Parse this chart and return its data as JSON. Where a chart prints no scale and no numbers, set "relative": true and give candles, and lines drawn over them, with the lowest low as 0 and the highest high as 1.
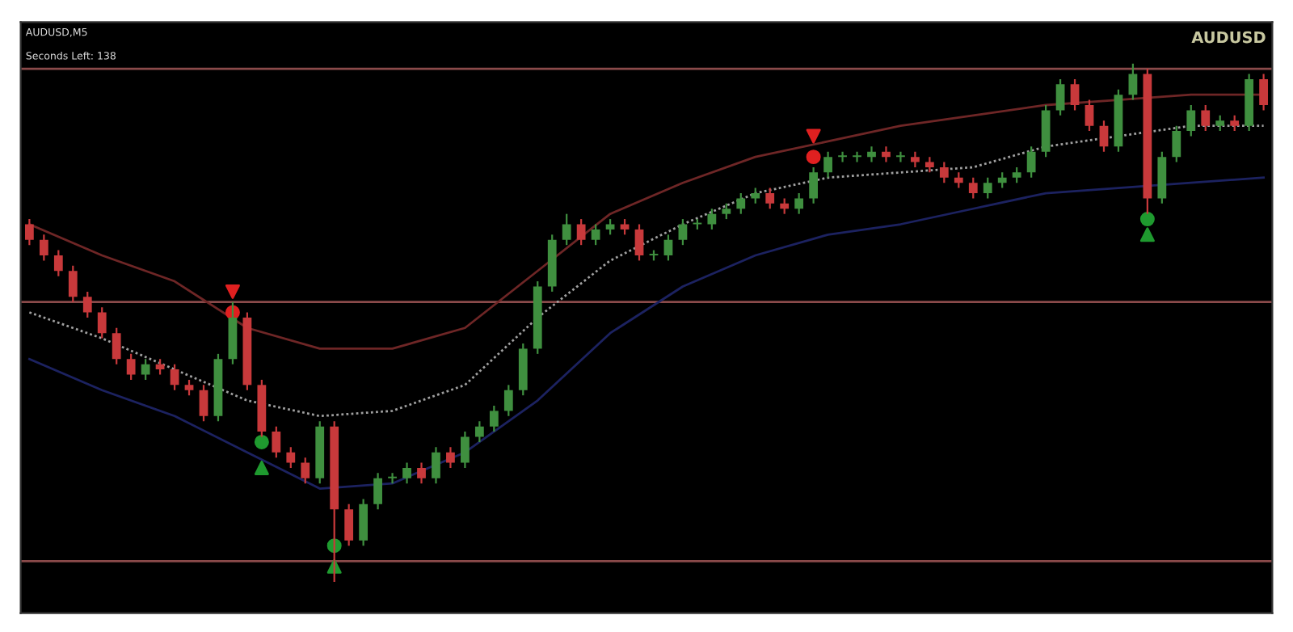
{
  "chart_data": {
    "type": "candlestick",
    "relative": true,
    "title": "AUDUSD",
    "annotations": [
      "AUDUSD,M5",
      "Seconds Left: 138"
    ],
    "categories": [
      null,
      null,
      null,
      null,
      null,
      null,
      null,
      null,
      null,
      null,
      null,
      null,
      null,
      null,
      null,
      null,
      null,
      null,
      null,
      null,
      null,
      null,
      null,
      null,
      null,
      null,
      null,
      null,
      null,
      null,
      null,
      null,
      null,
      null,
      null,
      null,
      null,
      null,
      null,
      null,
      null,
      null,
      null,
      null,
      null,
      null,
      null,
      null,
      null,
      null,
      null,
      null,
      null,
      null,
      null,
      null,
      null,
      null,
      null,
      null,
      null,
      null,
      null,
      null,
      null,
      null,
      null,
      null,
      null,
      null,
      null,
      null,
      null,
      null,
      null,
      null,
      null,
      null,
      null,
      null,
      null,
      null,
      null,
      null,
      null,
      null
    ],
    "ohlc": [
      [
        0.69,
        0.7,
        0.65,
        0.66
      ],
      [
        0.66,
        0.67,
        0.62,
        0.63
      ],
      [
        0.63,
        0.64,
        0.59,
        0.6
      ],
      [
        0.6,
        0.61,
        0.54,
        0.55
      ],
      [
        0.55,
        0.56,
        0.51,
        0.52
      ],
      [
        0.52,
        0.53,
        0.47,
        0.48
      ],
      [
        0.48,
        0.49,
        0.42,
        0.43
      ],
      [
        0.43,
        0.44,
        0.39,
        0.4
      ],
      [
        0.4,
        0.43,
        0.39,
        0.42
      ],
      [
        0.42,
        0.43,
        0.4,
        0.41
      ],
      [
        0.41,
        0.42,
        0.37,
        0.38
      ],
      [
        0.38,
        0.39,
        0.36,
        0.37
      ],
      [
        0.37,
        0.38,
        0.31,
        0.32
      ],
      [
        0.32,
        0.44,
        0.31,
        0.43
      ],
      [
        0.43,
        0.54,
        0.42,
        0.51
      ],
      [
        0.51,
        0.52,
        0.37,
        0.38
      ],
      [
        0.38,
        0.39,
        0.28,
        0.29
      ],
      [
        0.29,
        0.3,
        0.24,
        0.25
      ],
      [
        0.25,
        0.26,
        0.22,
        0.23
      ],
      [
        0.23,
        0.24,
        0.19,
        0.2
      ],
      [
        0.2,
        0.31,
        0.19,
        0.3
      ],
      [
        0.3,
        0.31,
        0.0,
        0.14
      ],
      [
        0.14,
        0.15,
        0.07,
        0.08
      ],
      [
        0.08,
        0.16,
        0.07,
        0.15
      ],
      [
        0.15,
        0.21,
        0.14,
        0.2
      ],
      [
        0.2,
        0.21,
        0.19,
        0.2
      ],
      [
        0.2,
        0.23,
        0.19,
        0.22
      ],
      [
        0.22,
        0.23,
        0.19,
        0.2
      ],
      [
        0.2,
        0.26,
        0.19,
        0.25
      ],
      [
        0.25,
        0.26,
        0.22,
        0.23
      ],
      [
        0.23,
        0.29,
        0.22,
        0.28
      ],
      [
        0.28,
        0.31,
        0.27,
        0.3
      ],
      [
        0.3,
        0.34,
        0.29,
        0.33
      ],
      [
        0.33,
        0.38,
        0.32,
        0.37
      ],
      [
        0.37,
        0.46,
        0.36,
        0.45
      ],
      [
        0.45,
        0.58,
        0.44,
        0.57
      ],
      [
        0.57,
        0.67,
        0.56,
        0.66
      ],
      [
        0.66,
        0.71,
        0.65,
        0.69
      ],
      [
        0.69,
        0.7,
        0.65,
        0.66
      ],
      [
        0.66,
        0.69,
        0.65,
        0.68
      ],
      [
        0.68,
        0.7,
        0.67,
        0.69
      ],
      [
        0.69,
        0.7,
        0.67,
        0.68
      ],
      [
        0.68,
        0.69,
        0.62,
        0.63
      ],
      [
        0.63,
        0.64,
        0.62,
        0.63
      ],
      [
        0.63,
        0.67,
        0.62,
        0.66
      ],
      [
        0.66,
        0.7,
        0.65,
        0.69
      ],
      [
        0.69,
        0.7,
        0.68,
        0.69
      ],
      [
        0.69,
        0.72,
        0.68,
        0.71
      ],
      [
        0.71,
        0.73,
        0.7,
        0.72
      ],
      [
        0.72,
        0.75,
        0.71,
        0.74
      ],
      [
        0.74,
        0.76,
        0.73,
        0.75
      ],
      [
        0.75,
        0.76,
        0.72,
        0.73
      ],
      [
        0.73,
        0.74,
        0.71,
        0.72
      ],
      [
        0.72,
        0.75,
        0.71,
        0.74
      ],
      [
        0.74,
        0.8,
        0.73,
        0.79
      ],
      [
        0.79,
        0.83,
        0.78,
        0.82
      ],
      [
        0.82,
        0.83,
        0.81,
        0.82
      ],
      [
        0.82,
        0.83,
        0.81,
        0.82
      ],
      [
        0.82,
        0.84,
        0.81,
        0.83
      ],
      [
        0.83,
        0.84,
        0.81,
        0.82
      ],
      [
        0.82,
        0.83,
        0.81,
        0.82
      ],
      [
        0.82,
        0.83,
        0.8,
        0.81
      ],
      [
        0.81,
        0.82,
        0.79,
        0.8
      ],
      [
        0.8,
        0.81,
        0.77,
        0.78
      ],
      [
        0.78,
        0.79,
        0.76,
        0.77
      ],
      [
        0.77,
        0.78,
        0.74,
        0.75
      ],
      [
        0.75,
        0.78,
        0.74,
        0.77
      ],
      [
        0.77,
        0.79,
        0.76,
        0.78
      ],
      [
        0.78,
        0.8,
        0.77,
        0.79
      ],
      [
        0.79,
        0.84,
        0.78,
        0.83
      ],
      [
        0.83,
        0.92,
        0.82,
        0.91
      ],
      [
        0.91,
        0.97,
        0.9,
        0.96
      ],
      [
        0.96,
        0.97,
        0.91,
        0.92
      ],
      [
        0.92,
        0.93,
        0.87,
        0.88
      ],
      [
        0.88,
        0.89,
        0.83,
        0.84
      ],
      [
        0.84,
        0.95,
        0.83,
        0.94
      ],
      [
        0.94,
        1.0,
        0.93,
        0.98
      ],
      [
        0.98,
        0.99,
        0.71,
        0.74
      ],
      [
        0.74,
        0.83,
        0.73,
        0.82
      ],
      [
        0.82,
        0.88,
        0.81,
        0.87
      ],
      [
        0.87,
        0.92,
        0.86,
        0.91
      ],
      [
        0.91,
        0.92,
        0.87,
        0.88
      ],
      [
        0.88,
        0.9,
        0.87,
        0.89
      ],
      [
        0.89,
        0.9,
        0.87,
        0.88
      ],
      [
        0.88,
        0.98,
        0.87,
        0.97
      ],
      [
        0.97,
        0.98,
        0.91,
        0.92
      ]
    ],
    "ref_lines": [
      {
        "axis": "y",
        "value": 0.54,
        "color": "#8a4a4a"
      },
      {
        "axis": "y",
        "value": 0.04,
        "color": "#8a4a4a"
      },
      {
        "axis": "y",
        "value": 0.99,
        "color": "#8a4a4a"
      }
    ],
    "series": [
      {
        "type": "line",
        "color": "#6e2626",
        "line_style": "solid",
        "values": [
          0.69,
          null,
          null,
          null,
          null,
          0.63,
          null,
          null,
          null,
          null,
          0.58,
          null,
          null,
          null,
          null,
          0.49,
          null,
          null,
          null,
          null,
          0.45,
          null,
          null,
          null,
          null,
          0.45,
          null,
          null,
          null,
          null,
          0.49,
          null,
          null,
          null,
          null,
          0.6,
          null,
          null,
          null,
          null,
          0.71,
          null,
          null,
          null,
          null,
          0.77,
          null,
          null,
          null,
          null,
          0.82,
          null,
          null,
          null,
          null,
          0.85,
          null,
          null,
          null,
          null,
          0.88,
          null,
          null,
          null,
          null,
          0.9,
          null,
          null,
          null,
          null,
          0.92,
          null,
          null,
          null,
          null,
          0.93,
          null,
          null,
          null,
          null,
          0.94,
          null,
          null,
          null,
          null,
          0.94
        ]
      },
      {
        "type": "line",
        "color": "#a0a0a0",
        "line_style": "dotted",
        "values": [
          0.52,
          null,
          null,
          null,
          null,
          0.47,
          null,
          null,
          null,
          null,
          0.41,
          null,
          null,
          null,
          null,
          0.35,
          null,
          null,
          null,
          null,
          0.32,
          null,
          null,
          null,
          null,
          0.33,
          null,
          null,
          null,
          null,
          0.38,
          null,
          null,
          null,
          null,
          0.51,
          null,
          null,
          null,
          null,
          0.62,
          null,
          null,
          null,
          null,
          0.69,
          null,
          null,
          null,
          null,
          0.75,
          null,
          null,
          null,
          null,
          0.78,
          null,
          null,
          null,
          null,
          0.79,
          null,
          null,
          null,
          null,
          0.8,
          null,
          null,
          null,
          null,
          0.84,
          null,
          null,
          null,
          null,
          0.86,
          null,
          null,
          null,
          null,
          0.88,
          null,
          null,
          null,
          null,
          0.88
        ]
      },
      {
        "type": "line",
        "color": "#1c2260",
        "line_style": "solid",
        "values": [
          0.43,
          null,
          null,
          null,
          null,
          0.37,
          null,
          null,
          null,
          null,
          0.32,
          null,
          null,
          null,
          null,
          0.25,
          null,
          null,
          null,
          null,
          0.18,
          null,
          null,
          null,
          null,
          0.19,
          null,
          null,
          null,
          null,
          0.25,
          null,
          null,
          null,
          null,
          0.35,
          null,
          null,
          null,
          null,
          0.48,
          null,
          null,
          null,
          null,
          0.57,
          null,
          null,
          null,
          null,
          0.63,
          null,
          null,
          null,
          null,
          0.67,
          null,
          null,
          null,
          null,
          0.69,
          null,
          null,
          null,
          null,
          0.72,
          null,
          null,
          null,
          null,
          0.75,
          null,
          null,
          null,
          null,
          0.76,
          null,
          null,
          null,
          null,
          0.77,
          null,
          null,
          null,
          null,
          0.78
        ]
      },
      {
        "type": "scatter",
        "color": "#e02020",
        "marker": "circle",
        "values": [
          null,
          null,
          null,
          null,
          null,
          null,
          null,
          null,
          null,
          null,
          null,
          null,
          null,
          null,
          0.52,
          null,
          null,
          null,
          null,
          null,
          null,
          null,
          null,
          null,
          null,
          null,
          null,
          null,
          null,
          null,
          null,
          null,
          null,
          null,
          null,
          null,
          null,
          null,
          null,
          null,
          null,
          null,
          null,
          null,
          null,
          null,
          null,
          null,
          null,
          null,
          null,
          null,
          null,
          null,
          0.82,
          null,
          null,
          null,
          null,
          null,
          null,
          null,
          null,
          null,
          null,
          null,
          null,
          null,
          null,
          null,
          null,
          null,
          null,
          null,
          null,
          null,
          null,
          null,
          null,
          null,
          null,
          null,
          null,
          null,
          null,
          null
        ]
      },
      {
        "type": "scatter",
        "color": "#e02020",
        "marker": "triangle_down",
        "values": [
          null,
          null,
          null,
          null,
          null,
          null,
          null,
          null,
          null,
          null,
          null,
          null,
          null,
          null,
          0.56,
          null,
          null,
          null,
          null,
          null,
          null,
          null,
          null,
          null,
          null,
          null,
          null,
          null,
          null,
          null,
          null,
          null,
          null,
          null,
          null,
          null,
          null,
          null,
          null,
          null,
          null,
          null,
          null,
          null,
          null,
          null,
          null,
          null,
          null,
          null,
          null,
          null,
          null,
          null,
          0.86,
          null,
          null,
          null,
          null,
          null,
          null,
          null,
          null,
          null,
          null,
          null,
          null,
          null,
          null,
          null,
          null,
          null,
          null,
          null,
          null,
          null,
          null,
          null,
          null,
          null,
          null,
          null,
          null,
          null,
          null,
          null
        ]
      },
      {
        "type": "scatter",
        "color": "#1f9a2f",
        "marker": "circle",
        "values": [
          null,
          null,
          null,
          null,
          null,
          null,
          null,
          null,
          null,
          null,
          null,
          null,
          null,
          null,
          null,
          null,
          0.27,
          null,
          null,
          null,
          null,
          0.07,
          null,
          null,
          null,
          null,
          null,
          null,
          null,
          null,
          null,
          null,
          null,
          null,
          null,
          null,
          null,
          null,
          null,
          null,
          null,
          null,
          null,
          null,
          null,
          null,
          null,
          null,
          null,
          null,
          null,
          null,
          null,
          null,
          null,
          null,
          null,
          null,
          null,
          null,
          null,
          null,
          null,
          null,
          null,
          null,
          null,
          null,
          null,
          null,
          null,
          null,
          null,
          null,
          null,
          null,
          null,
          0.7,
          null,
          null,
          null,
          null,
          null,
          null,
          null,
          null
        ]
      },
      {
        "type": "scatter",
        "color": "#1f9a2f",
        "marker": "triangle",
        "values": [
          null,
          null,
          null,
          null,
          null,
          null,
          null,
          null,
          null,
          null,
          null,
          null,
          null,
          null,
          null,
          null,
          0.22,
          null,
          null,
          null,
          null,
          0.03,
          null,
          null,
          null,
          null,
          null,
          null,
          null,
          null,
          null,
          null,
          null,
          null,
          null,
          null,
          null,
          null,
          null,
          null,
          null,
          null,
          null,
          null,
          null,
          null,
          null,
          null,
          null,
          null,
          null,
          null,
          null,
          null,
          null,
          null,
          null,
          null,
          null,
          null,
          null,
          null,
          null,
          null,
          null,
          null,
          null,
          null,
          null,
          null,
          null,
          null,
          null,
          null,
          null,
          null,
          null,
          0.67,
          null,
          null,
          null,
          null,
          null,
          null,
          null,
          null
        ]
      }
    ]
  }
}
